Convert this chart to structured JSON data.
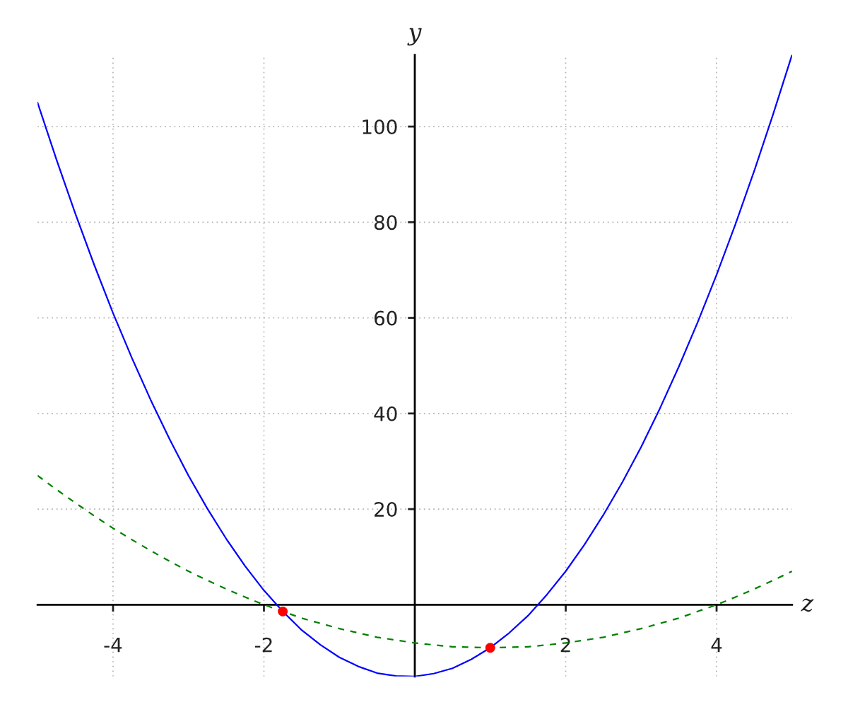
{
  "chart_data": {
    "type": "line",
    "xlabel": "z",
    "ylabel": "y",
    "xlim": [
      -5,
      5
    ],
    "ylim": [
      -15,
      115
    ],
    "xticks": [
      -4,
      -2,
      2,
      4
    ],
    "yticks": [
      20,
      40,
      60,
      80,
      100
    ],
    "grid": true,
    "series": [
      {
        "color": "#0000ff",
        "line_style": "solid",
        "x": [
          -5,
          -4.75,
          -4.5,
          -4.25,
          -4,
          -3.75,
          -3.5,
          -3.25,
          -3,
          -2.75,
          -2.5,
          -2.25,
          -2,
          -1.75,
          -1.5,
          -1.25,
          -1,
          -0.75,
          -0.5,
          -0.25,
          0,
          0.25,
          0.5,
          0.75,
          1,
          1.25,
          1.5,
          1.75,
          2,
          2.25,
          2.5,
          2.75,
          3,
          3.25,
          3.5,
          3.75,
          4,
          4.25,
          4.5,
          4.75,
          5
        ],
        "values": [
          105,
          93.1,
          81.8,
          71.1,
          61,
          51.6,
          42.8,
          34.6,
          27,
          20.1,
          13.8,
          8.1,
          3,
          -1.4,
          -5.3,
          -8.4,
          -11,
          -12.9,
          -14.3,
          -14.9,
          -15,
          -14.4,
          -13.3,
          -11.4,
          -9,
          -5.9,
          -2.3,
          2.1,
          7,
          12.6,
          18.8,
          25.6,
          33,
          41.1,
          49.8,
          59.1,
          69,
          79.6,
          90.8,
          102.6,
          115
        ]
      },
      {
        "color": "#008000",
        "line_style": "dashed",
        "x": [
          -5,
          -4.75,
          -4.5,
          -4.25,
          -4,
          -3.75,
          -3.5,
          -3.25,
          -3,
          -2.75,
          -2.5,
          -2.25,
          -2,
          -1.75,
          -1.5,
          -1.25,
          -1,
          -0.75,
          -0.5,
          -0.25,
          0,
          0.25,
          0.5,
          0.75,
          1,
          1.25,
          1.5,
          1.75,
          2,
          2.25,
          2.5,
          2.75,
          3,
          3.25,
          3.5,
          3.75,
          4,
          4.25,
          4.5,
          4.75,
          5
        ],
        "values": [
          27,
          24.1,
          21.3,
          18.6,
          16,
          13.6,
          11.3,
          9.1,
          7,
          5.1,
          3.3,
          1.6,
          0,
          -1.4,
          -2.8,
          -3.9,
          -5,
          -5.9,
          -6.8,
          -7.4,
          -8,
          -8.4,
          -8.8,
          -8.9,
          -9,
          -8.9,
          -8.8,
          -8.4,
          -8,
          -7.4,
          -6.8,
          -5.9,
          -5,
          -3.9,
          -2.8,
          -1.4,
          0,
          1.6,
          3.3,
          5.1,
          7
        ]
      },
      {
        "type": "scatter",
        "color": "#ff0000",
        "marker": "circle",
        "x": [
          -1.75,
          1
        ],
        "values": [
          -1.4,
          -9
        ]
      }
    ]
  }
}
